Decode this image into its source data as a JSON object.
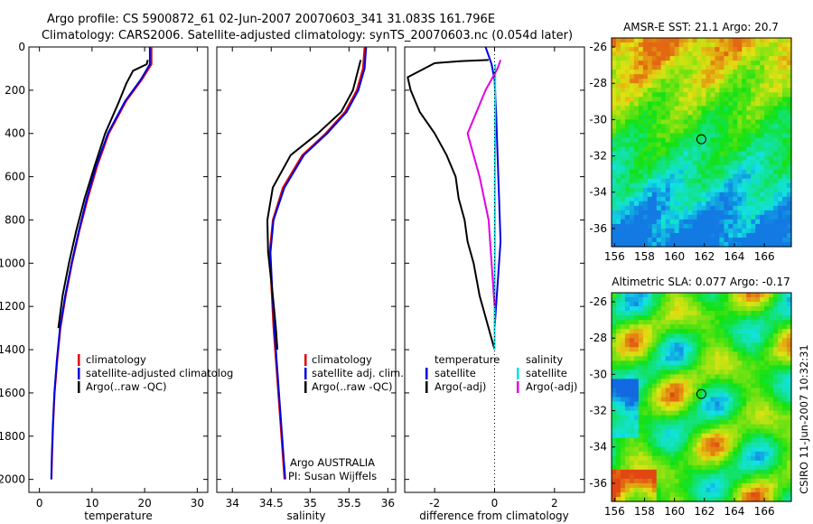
{
  "header": {
    "title_line1": "Argo profile: CS 5900872_61 02-Jun-2007 20070603_341 31.083S 161.796E",
    "title_line2": "Climatology: CARS2006. Satellite-adjusted climatology: synTS_20070603.nc (0.054d later)"
  },
  "footer": {
    "credit": "CSIRO 11-Jun-2007 10:32:31",
    "argo_label": "Argo AUSTRALIA",
    "pi_label": "PI: Susan Wijffels"
  },
  "colors": {
    "climatology": "#e00000",
    "satellite": "#0000e0",
    "argo": "#000000",
    "salinity_satellite": "#00e0e0",
    "salinity_argo": "#e000e0",
    "float_marker": "#000000"
  },
  "chart_data": [
    {
      "id": "temperature-profile",
      "type": "line",
      "xlabel": "temperature",
      "ylabel": "",
      "xlim": [
        -2,
        32
      ],
      "ylim": [
        2060,
        0
      ],
      "y_inverted": true,
      "xticks": [
        0,
        10,
        20,
        30
      ],
      "yticks": [
        0,
        200,
        400,
        600,
        800,
        1000,
        1200,
        1400,
        1600,
        1800,
        2000
      ],
      "legend": [
        "climatology",
        "satellite-adjusted climatolog",
        "Argo(..raw -QC)"
      ],
      "legend_placement": "lower-right",
      "series": [
        {
          "name": "climatology",
          "color": "#e00000",
          "x": [
            21.3,
            21.3,
            19.5,
            16.5,
            13.2,
            11.0,
            9.2,
            7.6,
            6.2,
            5.0,
            4.0,
            3.4,
            2.9,
            2.6,
            2.4,
            2.3
          ],
          "y": [
            0,
            80,
            150,
            250,
            400,
            550,
            700,
            850,
            1000,
            1150,
            1300,
            1450,
            1600,
            1750,
            1900,
            2000
          ]
        },
        {
          "name": "satellite-adjusted climatolog",
          "color": "#0000e0",
          "x": [
            21.0,
            21.0,
            19.3,
            16.3,
            13.0,
            10.8,
            9.0,
            7.5,
            6.1,
            4.9,
            3.9,
            3.3,
            2.85,
            2.55,
            2.35,
            2.25
          ],
          "y": [
            0,
            80,
            150,
            250,
            400,
            550,
            700,
            850,
            1000,
            1150,
            1300,
            1450,
            1600,
            1750,
            1900,
            2000
          ]
        },
        {
          "name": "Argo(..raw -QC)",
          "color": "#000000",
          "x": [
            20.6,
            20.4,
            17.8,
            16.5,
            15.0,
            12.5,
            10.5,
            8.6,
            7.0,
            5.6,
            4.4,
            3.6
          ],
          "y": [
            60,
            80,
            110,
            170,
            260,
            400,
            550,
            700,
            850,
            1000,
            1150,
            1300
          ]
        }
      ]
    },
    {
      "id": "salinity-profile",
      "type": "line",
      "xlabel": "salinity",
      "ylabel": "",
      "xlim": [
        33.8,
        36.1
      ],
      "ylim": [
        2060,
        0
      ],
      "y_inverted": true,
      "xticks": [
        34,
        34.5,
        35,
        35.5,
        36
      ],
      "legend": [
        "climatology",
        "satellite adj. clim.",
        "Argo(..raw -QC)"
      ],
      "legend_placement": "lower-right",
      "series": [
        {
          "name": "climatology",
          "color": "#e00000",
          "x": [
            35.7,
            35.68,
            35.6,
            35.45,
            35.2,
            34.9,
            34.65,
            34.52,
            34.48,
            34.5,
            34.53,
            34.57,
            34.6,
            34.63,
            34.65,
            34.67
          ],
          "y": [
            0,
            100,
            200,
            300,
            400,
            500,
            650,
            800,
            950,
            1100,
            1300,
            1500,
            1650,
            1800,
            1900,
            2000
          ]
        },
        {
          "name": "satellite adj. clim.",
          "color": "#0000e0",
          "x": [
            35.72,
            35.7,
            35.62,
            35.47,
            35.22,
            34.92,
            34.67,
            34.53,
            34.49,
            34.51,
            34.54,
            34.58,
            34.61,
            34.64,
            34.66,
            34.68
          ],
          "y": [
            0,
            100,
            200,
            300,
            400,
            500,
            650,
            800,
            950,
            1100,
            1300,
            1500,
            1650,
            1800,
            1900,
            2000
          ]
        },
        {
          "name": "Argo(..raw -QC)",
          "color": "#000000",
          "x": [
            35.65,
            35.55,
            35.4,
            35.1,
            34.75,
            34.52,
            34.45,
            34.46,
            34.52,
            34.56,
            34.58
          ],
          "y": [
            60,
            200,
            300,
            400,
            500,
            650,
            800,
            950,
            1150,
            1300,
            1400
          ]
        }
      ]
    },
    {
      "id": "difference-profile",
      "type": "line",
      "xlabel": "difference from climatology",
      "ylabel": "",
      "xlim": [
        -3,
        3
      ],
      "ylim": [
        2060,
        0
      ],
      "y_inverted": true,
      "xticks": [
        -2,
        0,
        2
      ],
      "zero_line": "dotted",
      "legend_columns": [
        {
          "heading": "temperature",
          "entries": [
            "satellite",
            "Argo(-adj)"
          ]
        },
        {
          "heading": "salinity",
          "entries": [
            "satellite",
            "Argo(-adj)"
          ]
        }
      ],
      "legend_placement": "lower-center",
      "series": [
        {
          "name": "temperature satellite",
          "color": "#0000e0",
          "x": [
            -0.3,
            -0.2,
            -0.1,
            0.0,
            0.05,
            0.1,
            0.15,
            0.2,
            0.1,
            0.0
          ],
          "y": [
            0,
            40,
            80,
            150,
            300,
            500,
            700,
            900,
            1100,
            1300
          ]
        },
        {
          "name": "temperature Argo(-adj)",
          "color": "#000000",
          "x": [
            -0.2,
            -1.1,
            -2.0,
            -2.9,
            -2.8,
            -2.5,
            -2.0,
            -1.6,
            -1.3,
            -1.2,
            -1.0,
            -0.9,
            -0.7,
            -0.5,
            -0.2,
            0.0
          ],
          "y": [
            60,
            65,
            75,
            140,
            200,
            300,
            400,
            500,
            600,
            700,
            800,
            900,
            1000,
            1150,
            1300,
            1400
          ]
        },
        {
          "name": "salinity satellite",
          "color": "#00e0e0",
          "x": [
            0.02,
            0.02,
            0.01,
            0.01,
            0.0,
            0.0
          ],
          "y": [
            80,
            300,
            600,
            900,
            1200,
            1400
          ]
        },
        {
          "name": "salinity Argo(-adj)",
          "color": "#e000e0",
          "x": [
            0.2,
            0.1,
            -0.3,
            -0.6,
            -0.9,
            -0.5,
            -0.2,
            -0.1,
            0.0
          ],
          "y": [
            60,
            100,
            200,
            300,
            400,
            600,
            800,
            1000,
            1200
          ]
        }
      ]
    },
    {
      "id": "sst-map",
      "type": "heatmap",
      "title": "AMSR-E SST: 21.1  Argo: 20.7",
      "xlim": [
        155.8,
        167.8
      ],
      "ylim": [
        -37,
        -25.5
      ],
      "xticks": [
        156,
        158,
        160,
        162,
        164,
        166
      ],
      "yticks": [
        -26,
        -28,
        -30,
        -32,
        -34,
        -36
      ],
      "float_position": {
        "lon": 161.796,
        "lat": -31.083
      }
    },
    {
      "id": "sla-map",
      "type": "heatmap",
      "title": "Altimetric SLA: 0.077  Argo: -0.17",
      "xlim": [
        155.8,
        167.8
      ],
      "ylim": [
        -37,
        -25.5
      ],
      "xticks": [
        156,
        158,
        160,
        162,
        164,
        166
      ],
      "yticks": [
        -26,
        -28,
        -30,
        -32,
        -34,
        -36
      ],
      "float_position": {
        "lon": 161.796,
        "lat": -31.083
      }
    }
  ]
}
